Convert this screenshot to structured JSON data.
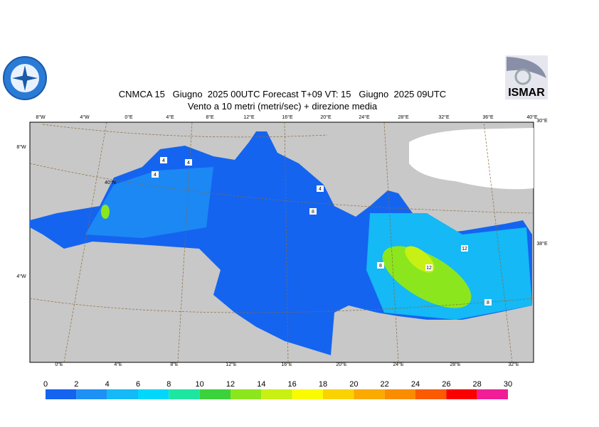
{
  "header": {
    "title": "CNMCA 15   Giugno  2025 00UTC Forecast T+09 VT: 15   Giugno  2025 09UTC",
    "subtitle": "Vento a 10 metri (metri/sec) + direzione media"
  },
  "logo": {
    "right": "ISMAR"
  },
  "graticule": {
    "top": [
      "8°W",
      "4°W",
      "0°E",
      "4°E",
      "8°E",
      "12°E",
      "16°E",
      "20°E",
      "24°E",
      "28°E",
      "32°E",
      "36°E",
      "40°E"
    ],
    "bottom": [
      "0°E",
      "4°E",
      "8°E",
      "12°E",
      "16°E",
      "20°E",
      "24°E",
      "28°E",
      "32°E"
    ],
    "left": [
      "8°W",
      "40°N",
      "4°W"
    ],
    "right": [
      "30°E",
      "38°E"
    ]
  },
  "contour_labels": [
    "4",
    "4",
    "4",
    "4",
    "8",
    "8",
    "12",
    "12",
    "8"
  ],
  "colorbar": {
    "ticks": [
      0,
      2,
      4,
      6,
      8,
      10,
      12,
      14,
      16,
      18,
      20,
      22,
      24,
      26,
      28,
      30
    ],
    "colors": [
      "#1464f0",
      "#1e91f5",
      "#14b9f5",
      "#00d7fa",
      "#1ee6a0",
      "#3cd23c",
      "#8ce61e",
      "#c8f014",
      "#fafa00",
      "#fad200",
      "#faaa00",
      "#fa8c00",
      "#fa5a00",
      "#fa0000",
      "#f01e96"
    ]
  }
}
